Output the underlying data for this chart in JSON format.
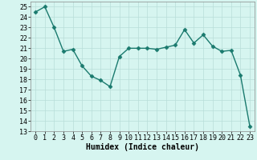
{
  "x": [
    0,
    1,
    2,
    3,
    4,
    5,
    6,
    7,
    8,
    9,
    10,
    11,
    12,
    13,
    14,
    15,
    16,
    17,
    18,
    19,
    20,
    21,
    22,
    23
  ],
  "y": [
    24.5,
    25.0,
    23.0,
    20.7,
    20.9,
    19.3,
    18.3,
    17.9,
    17.3,
    20.2,
    21.0,
    21.0,
    21.0,
    20.9,
    21.1,
    21.3,
    22.8,
    21.5,
    22.3,
    21.2,
    20.7,
    20.8,
    18.4,
    13.5
  ],
  "line_color": "#1a7a6e",
  "marker": "D",
  "markersize": 2.5,
  "linewidth": 1.0,
  "bg_color": "#d6f5f0",
  "grid_color": "#b8ddd8",
  "xlabel": "Humidex (Indice chaleur)",
  "xlim": [
    -0.5,
    23.5
  ],
  "ylim": [
    13,
    25.5
  ],
  "yticks": [
    13,
    14,
    15,
    16,
    17,
    18,
    19,
    20,
    21,
    22,
    23,
    24,
    25
  ],
  "xticks": [
    0,
    1,
    2,
    3,
    4,
    5,
    6,
    7,
    8,
    9,
    10,
    11,
    12,
    13,
    14,
    15,
    16,
    17,
    18,
    19,
    20,
    21,
    22,
    23
  ],
  "xlabel_fontsize": 7,
  "tick_fontsize": 6,
  "spine_color": "#888888"
}
